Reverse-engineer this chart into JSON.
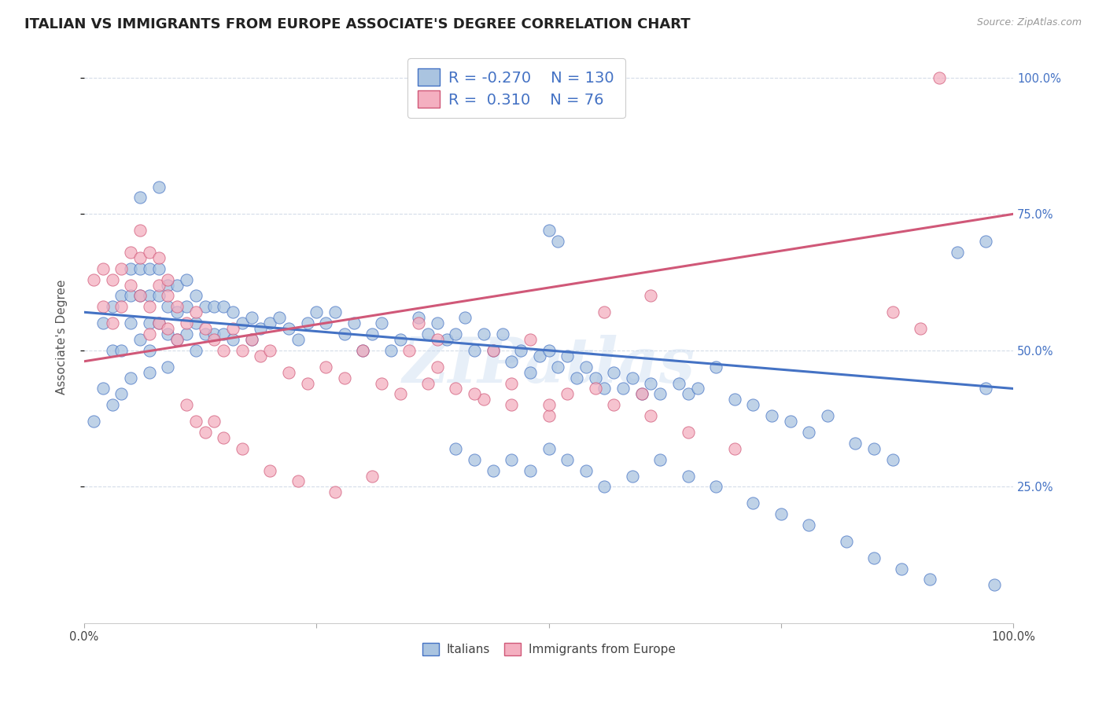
{
  "title": "ITALIAN VS IMMIGRANTS FROM EUROPE ASSOCIATE'S DEGREE CORRELATION CHART",
  "source": "Source: ZipAtlas.com",
  "ylabel": "Associate's Degree",
  "legend_label1": "Italians",
  "legend_label2": "Immigrants from Europe",
  "r1": -0.27,
  "n1": 130,
  "r2": 0.31,
  "n2": 76,
  "color_blue": "#aac4e0",
  "color_pink": "#f4afc0",
  "line_blue": "#4472c4",
  "line_pink": "#d05878",
  "ytick_labels": [
    "25.0%",
    "50.0%",
    "75.0%",
    "100.0%"
  ],
  "ytick_values": [
    0.25,
    0.5,
    0.75,
    1.0
  ],
  "watermark": "ZIPatlas",
  "blue_line_x0": 0.0,
  "blue_line_y0": 0.57,
  "blue_line_x1": 1.0,
  "blue_line_y1": 0.43,
  "pink_line_x0": 0.0,
  "pink_line_y0": 0.48,
  "pink_line_x1": 1.0,
  "pink_line_y1": 0.75,
  "blue_scatter_x": [
    0.01,
    0.02,
    0.02,
    0.03,
    0.03,
    0.03,
    0.04,
    0.04,
    0.04,
    0.05,
    0.05,
    0.05,
    0.05,
    0.06,
    0.06,
    0.06,
    0.07,
    0.07,
    0.07,
    0.07,
    0.07,
    0.08,
    0.08,
    0.08,
    0.09,
    0.09,
    0.09,
    0.09,
    0.1,
    0.1,
    0.1,
    0.11,
    0.11,
    0.11,
    0.12,
    0.12,
    0.12,
    0.13,
    0.13,
    0.14,
    0.14,
    0.15,
    0.15,
    0.16,
    0.16,
    0.17,
    0.18,
    0.18,
    0.19,
    0.2,
    0.21,
    0.22,
    0.23,
    0.24,
    0.25,
    0.26,
    0.27,
    0.28,
    0.29,
    0.3,
    0.31,
    0.32,
    0.33,
    0.34,
    0.36,
    0.37,
    0.38,
    0.39,
    0.4,
    0.41,
    0.42,
    0.43,
    0.44,
    0.45,
    0.46,
    0.47,
    0.48,
    0.49,
    0.5,
    0.51,
    0.52,
    0.53,
    0.54,
    0.55,
    0.56,
    0.57,
    0.58,
    0.59,
    0.6,
    0.61,
    0.62,
    0.64,
    0.65,
    0.66,
    0.68,
    0.7,
    0.72,
    0.74,
    0.76,
    0.78,
    0.8,
    0.83,
    0.85,
    0.87,
    0.4,
    0.42,
    0.44,
    0.46,
    0.48,
    0.5,
    0.52,
    0.54,
    0.56,
    0.59,
    0.62,
    0.65,
    0.68,
    0.72,
    0.75,
    0.78,
    0.82,
    0.85,
    0.88,
    0.91,
    0.94,
    0.97,
    0.5,
    0.51,
    0.06,
    0.08,
    0.97,
    0.98
  ],
  "blue_scatter_y": [
    0.37,
    0.55,
    0.43,
    0.58,
    0.5,
    0.4,
    0.6,
    0.5,
    0.42,
    0.65,
    0.6,
    0.55,
    0.45,
    0.65,
    0.6,
    0.52,
    0.65,
    0.6,
    0.55,
    0.5,
    0.46,
    0.65,
    0.6,
    0.55,
    0.62,
    0.58,
    0.53,
    0.47,
    0.62,
    0.57,
    0.52,
    0.63,
    0.58,
    0.53,
    0.6,
    0.55,
    0.5,
    0.58,
    0.53,
    0.58,
    0.53,
    0.58,
    0.53,
    0.57,
    0.52,
    0.55,
    0.56,
    0.52,
    0.54,
    0.55,
    0.56,
    0.54,
    0.52,
    0.55,
    0.57,
    0.55,
    0.57,
    0.53,
    0.55,
    0.5,
    0.53,
    0.55,
    0.5,
    0.52,
    0.56,
    0.53,
    0.55,
    0.52,
    0.53,
    0.56,
    0.5,
    0.53,
    0.5,
    0.53,
    0.48,
    0.5,
    0.46,
    0.49,
    0.5,
    0.47,
    0.49,
    0.45,
    0.47,
    0.45,
    0.43,
    0.46,
    0.43,
    0.45,
    0.42,
    0.44,
    0.42,
    0.44,
    0.42,
    0.43,
    0.47,
    0.41,
    0.4,
    0.38,
    0.37,
    0.35,
    0.38,
    0.33,
    0.32,
    0.3,
    0.32,
    0.3,
    0.28,
    0.3,
    0.28,
    0.32,
    0.3,
    0.28,
    0.25,
    0.27,
    0.3,
    0.27,
    0.25,
    0.22,
    0.2,
    0.18,
    0.15,
    0.12,
    0.1,
    0.08,
    0.68,
    0.7,
    0.72,
    0.7,
    0.78,
    0.8,
    0.43,
    0.07
  ],
  "pink_scatter_x": [
    0.01,
    0.02,
    0.02,
    0.03,
    0.03,
    0.04,
    0.04,
    0.05,
    0.05,
    0.06,
    0.06,
    0.07,
    0.07,
    0.08,
    0.08,
    0.09,
    0.09,
    0.1,
    0.1,
    0.11,
    0.12,
    0.13,
    0.14,
    0.15,
    0.16,
    0.17,
    0.18,
    0.19,
    0.2,
    0.22,
    0.24,
    0.26,
    0.28,
    0.3,
    0.32,
    0.34,
    0.37,
    0.4,
    0.43,
    0.46,
    0.11,
    0.12,
    0.13,
    0.14,
    0.15,
    0.17,
    0.2,
    0.23,
    0.27,
    0.31,
    0.06,
    0.07,
    0.08,
    0.09,
    0.35,
    0.38,
    0.42,
    0.46,
    0.5,
    0.55,
    0.6,
    0.87,
    0.9,
    0.92,
    0.56,
    0.61,
    0.36,
    0.38,
    0.44,
    0.48,
    0.5,
    0.52,
    0.57,
    0.61,
    0.65,
    0.7
  ],
  "pink_scatter_y": [
    0.63,
    0.65,
    0.58,
    0.63,
    0.55,
    0.65,
    0.58,
    0.68,
    0.62,
    0.67,
    0.6,
    0.58,
    0.53,
    0.62,
    0.55,
    0.6,
    0.54,
    0.58,
    0.52,
    0.55,
    0.57,
    0.54,
    0.52,
    0.5,
    0.54,
    0.5,
    0.52,
    0.49,
    0.5,
    0.46,
    0.44,
    0.47,
    0.45,
    0.5,
    0.44,
    0.42,
    0.44,
    0.43,
    0.41,
    0.44,
    0.4,
    0.37,
    0.35,
    0.37,
    0.34,
    0.32,
    0.28,
    0.26,
    0.24,
    0.27,
    0.72,
    0.68,
    0.67,
    0.63,
    0.5,
    0.47,
    0.42,
    0.4,
    0.38,
    0.43,
    0.42,
    0.57,
    0.54,
    1.0,
    0.57,
    0.6,
    0.55,
    0.52,
    0.5,
    0.52,
    0.4,
    0.42,
    0.4,
    0.38,
    0.35,
    0.32
  ],
  "xlim": [
    0.0,
    1.0
  ],
  "ylim": [
    0.0,
    1.05
  ],
  "background_color": "#ffffff",
  "grid_color": "#d4dce8",
  "title_fontsize": 13,
  "axis_label_fontsize": 11,
  "tick_fontsize": 10.5
}
